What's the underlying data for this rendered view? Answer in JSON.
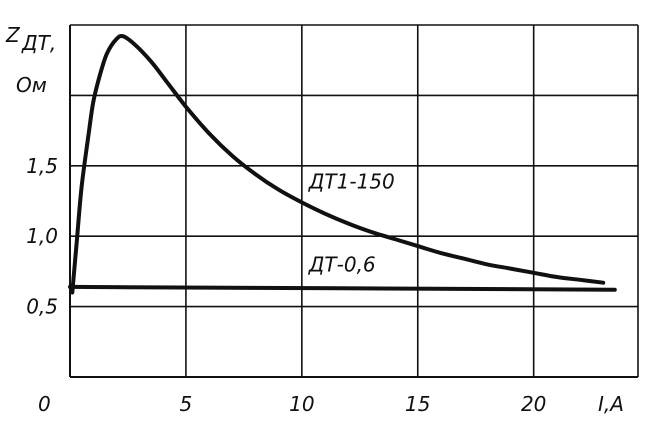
{
  "chart_data": {
    "type": "line",
    "ylabel_line1": "Z",
    "ylabel_sub": "ДТ,",
    "ylabel_line2": "Ом",
    "xlabel": "I,A",
    "origin_label": "0",
    "x_ticks": [
      5,
      10,
      15,
      20
    ],
    "x_tick_labels": [
      "5",
      "10",
      "15",
      "20"
    ],
    "y_ticks": [
      0.5,
      1.0,
      1.5
    ],
    "y_tick_labels": [
      "0,5",
      "1,0",
      "1,5"
    ],
    "xlim": [
      0,
      24.5
    ],
    "ylim": [
      0,
      2.5
    ],
    "x_grid": [
      0,
      5,
      10,
      15,
      20,
      24.5
    ],
    "y_grid": [
      0.5,
      1.0,
      1.5,
      2.0,
      2.5
    ],
    "grid": true,
    "series": [
      {
        "name": "ДТ1-150",
        "x": [
          0.1,
          0.3,
          0.5,
          0.8,
          1.0,
          1.3,
          1.6,
          2.0,
          2.3,
          2.8,
          3.5,
          4.2,
          5.0,
          6.0,
          7.0,
          8.0,
          9.0,
          10.0,
          11.0,
          12.0,
          13.0,
          14.0,
          15.0,
          16.0,
          17.0,
          18.0,
          19.0,
          20.0,
          21.0,
          22.0,
          23.0
        ],
        "y": [
          0.6,
          0.98,
          1.35,
          1.72,
          1.95,
          2.15,
          2.3,
          2.4,
          2.42,
          2.36,
          2.24,
          2.09,
          1.92,
          1.73,
          1.57,
          1.44,
          1.33,
          1.24,
          1.16,
          1.09,
          1.03,
          0.98,
          0.93,
          0.88,
          0.84,
          0.8,
          0.77,
          0.74,
          0.71,
          0.69,
          0.67
        ]
      },
      {
        "name": "ДТ-0,6",
        "x": [
          0,
          23.5
        ],
        "y": [
          0.64,
          0.62
        ]
      }
    ],
    "labels": [
      {
        "text": "ДТ1-150",
        "x": 10.3,
        "y": 1.34
      },
      {
        "text": "ДТ-0,6",
        "x": 10.3,
        "y": 0.75
      }
    ]
  }
}
